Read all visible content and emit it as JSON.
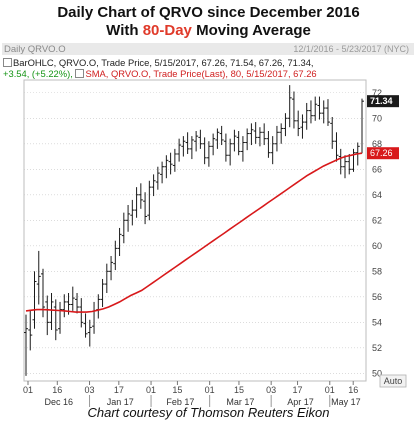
{
  "title_line1": "Daily Chart of QRVO since December 2016",
  "title_line2_prefix": "With ",
  "title_line2_highlight": "80-Day",
  "title_line2_suffix": " Moving Average",
  "panel_name": "Daily QRVO.O",
  "panel_range": "12/1/2016 - 5/23/2017 (NYC)",
  "legend_bar_label": "BarOHLC, QRVO.O, Trade Price, 5/15/2017, 67.26, 71.54, 67.26, 71.34,",
  "legend_change": "+3.54, (+5.22%),",
  "legend_sma_label": "SMA, QRVO.O, Trade Price(Last), 80, 5/15/2017, 67.26",
  "footer": "Chart courtesy of Thomson Reuters Eikon",
  "auto_label": "Auto",
  "colors": {
    "bars": "#1a1a1a",
    "sma": "#d8191b",
    "last_tag_bg": "#1a1a1a",
    "sma_tag_bg": "#d8191b",
    "grid": "#c8c8c8",
    "highlight": "#e03a2a"
  },
  "chart_data": {
    "type": "ohlc_with_line",
    "y_ticks": [
      50,
      52,
      54,
      56,
      58,
      60,
      62,
      64,
      66,
      68,
      70,
      72
    ],
    "ylim": [
      49.4,
      73.0
    ],
    "x_day_ticks": [
      "01",
      "16",
      "03",
      "17",
      "01",
      "15",
      "01",
      "15",
      "03",
      "17",
      "01",
      "16"
    ],
    "x_month_labels": [
      "Dec 16",
      "Jan 17",
      "Feb 17",
      "Mar 17",
      "Apr 17",
      "May 17"
    ],
    "last_price_tag": "71.34",
    "sma_tag": "67.26",
    "ohlc": [
      [
        53.2,
        54.6,
        49.8,
        53.5
      ],
      [
        53.4,
        55.0,
        51.8,
        53.0
      ],
      [
        54.2,
        58.0,
        53.5,
        57.2
      ],
      [
        57.0,
        59.6,
        55.4,
        57.6
      ],
      [
        57.8,
        58.2,
        54.4,
        55.2
      ],
      [
        55.6,
        56.1,
        53.0,
        54.0
      ],
      [
        54.0,
        56.3,
        53.4,
        55.6
      ],
      [
        55.2,
        55.8,
        52.6,
        53.4
      ],
      [
        53.5,
        55.6,
        53.1,
        55.0
      ],
      [
        55.0,
        56.2,
        54.4,
        55.6
      ],
      [
        55.6,
        56.3,
        54.6,
        55.4
      ],
      [
        55.4,
        56.8,
        54.9,
        55.9
      ],
      [
        55.8,
        56.3,
        54.7,
        55.2
      ],
      [
        55.2,
        55.9,
        53.6,
        54.0
      ],
      [
        53.9,
        54.7,
        52.8,
        53.1
      ],
      [
        53.2,
        54.2,
        52.1,
        53.6
      ],
      [
        53.7,
        55.6,
        53.1,
        54.9
      ],
      [
        55.0,
        56.2,
        54.3,
        55.8
      ],
      [
        55.8,
        57.4,
        55.2,
        57.0
      ],
      [
        57.0,
        58.6,
        56.3,
        58.0
      ],
      [
        58.0,
        59.2,
        57.3,
        58.7
      ],
      [
        58.6,
        60.4,
        58.1,
        59.8
      ],
      [
        59.8,
        61.4,
        59.2,
        60.9
      ],
      [
        60.8,
        62.6,
        60.2,
        62.0
      ],
      [
        62.0,
        63.2,
        61.1,
        62.5
      ],
      [
        62.4,
        63.6,
        61.6,
        62.8
      ],
      [
        62.8,
        64.6,
        62.2,
        64.0
      ],
      [
        64.0,
        64.9,
        62.9,
        63.6
      ],
      [
        63.5,
        64.2,
        61.7,
        62.3
      ],
      [
        62.4,
        65.1,
        62.0,
        64.6
      ],
      [
        64.6,
        65.6,
        63.9,
        65.1
      ],
      [
        65.0,
        66.2,
        64.4,
        65.7
      ],
      [
        65.6,
        66.6,
        64.9,
        66.2
      ],
      [
        66.2,
        67.1,
        65.3,
        66.7
      ],
      [
        66.6,
        67.3,
        65.6,
        66.4
      ],
      [
        66.3,
        67.6,
        65.8,
        67.2
      ],
      [
        67.2,
        68.4,
        66.6,
        67.9
      ],
      [
        67.8,
        68.6,
        67.0,
        68.2
      ],
      [
        68.1,
        68.9,
        67.2,
        67.6
      ],
      [
        67.6,
        68.6,
        66.8,
        68.3
      ],
      [
        68.2,
        69.0,
        67.4,
        68.6
      ],
      [
        68.5,
        69.1,
        67.6,
        68.0
      ],
      [
        68.0,
        68.5,
        66.4,
        66.9
      ],
      [
        66.9,
        68.2,
        66.2,
        67.8
      ],
      [
        67.8,
        68.8,
        67.1,
        68.4
      ],
      [
        68.3,
        69.2,
        67.6,
        68.9
      ],
      [
        68.8,
        69.4,
        67.9,
        68.3
      ],
      [
        68.2,
        68.8,
        66.6,
        67.1
      ],
      [
        67.1,
        68.4,
        66.3,
        68.0
      ],
      [
        68.0,
        69.1,
        67.4,
        68.6
      ],
      [
        68.5,
        69.0,
        67.1,
        67.4
      ],
      [
        67.4,
        68.6,
        66.6,
        68.1
      ],
      [
        68.1,
        69.2,
        67.5,
        68.8
      ],
      [
        68.8,
        69.6,
        67.9,
        69.1
      ],
      [
        69.0,
        69.7,
        68.0,
        68.5
      ],
      [
        68.5,
        69.3,
        67.8,
        68.9
      ],
      [
        68.9,
        69.6,
        67.9,
        68.4
      ],
      [
        68.4,
        69.0,
        66.9,
        67.3
      ],
      [
        67.3,
        68.6,
        66.4,
        68.0
      ],
      [
        68.0,
        69.4,
        67.4,
        68.9
      ],
      [
        68.9,
        69.6,
        68.0,
        69.2
      ],
      [
        69.2,
        70.4,
        68.6,
        70.0
      ],
      [
        70.0,
        72.6,
        69.3,
        71.6
      ],
      [
        71.5,
        72.1,
        69.2,
        69.8
      ],
      [
        69.8,
        70.6,
        68.6,
        69.2
      ],
      [
        69.3,
        70.3,
        68.4,
        69.7
      ],
      [
        69.7,
        71.2,
        69.1,
        70.6
      ],
      [
        70.6,
        71.4,
        69.6,
        70.2
      ],
      [
        70.2,
        71.7,
        69.8,
        71.1
      ],
      [
        71.0,
        71.7,
        69.9,
        70.4
      ],
      [
        70.4,
        71.4,
        69.6,
        70.8
      ],
      [
        70.8,
        71.5,
        69.4,
        69.7
      ],
      [
        69.6,
        70.1,
        67.6,
        68.2
      ],
      [
        68.2,
        68.9,
        66.6,
        67.1
      ],
      [
        67.0,
        67.6,
        65.6,
        66.2
      ],
      [
        66.2,
        67.1,
        65.3,
        66.6
      ],
      [
        66.6,
        67.2,
        65.6,
        66.0
      ],
      [
        66.0,
        67.6,
        65.8,
        67.3
      ],
      [
        67.3,
        68.1,
        66.3,
        67.8
      ],
      [
        67.26,
        71.54,
        67.26,
        71.34
      ]
    ],
    "sma": [
      54.9,
      54.95,
      55.0,
      55.0,
      54.98,
      54.95,
      54.93,
      54.9,
      54.85,
      54.8,
      54.8,
      54.8,
      54.85,
      54.95,
      55.05,
      55.2,
      55.4,
      55.6,
      55.85,
      56.1,
      56.3,
      56.5,
      56.8,
      57.1,
      57.4,
      57.7,
      58.0,
      58.3,
      58.6,
      58.9,
      59.2,
      59.5,
      59.8,
      60.1,
      60.4,
      60.7,
      61.0,
      61.3,
      61.6,
      61.9,
      62.2,
      62.5,
      62.8,
      63.1,
      63.4,
      63.7,
      64.0,
      64.3,
      64.6,
      64.9,
      65.2,
      65.5,
      65.75,
      66.0,
      66.25,
      66.45,
      66.65,
      66.85,
      67.0,
      67.1,
      67.2,
      67.26
    ]
  }
}
